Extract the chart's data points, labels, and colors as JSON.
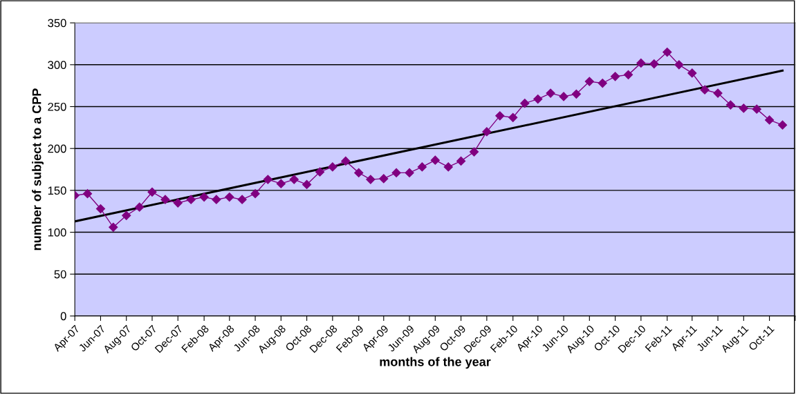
{
  "chart_data": {
    "type": "line",
    "xlabel": "months of the year",
    "ylabel": "number of subject to a CPP",
    "x": [
      "2007-04",
      "2007-05",
      "2007-06",
      "2007-07",
      "2007-08",
      "2007-09",
      "2007-10",
      "2007-11",
      "2007-12",
      "2008-01",
      "2008-02",
      "2008-03",
      "2008-04",
      "2008-05",
      "2008-06",
      "2008-07",
      "2008-08",
      "2008-09",
      "2008-10",
      "2008-11",
      "2008-12",
      "2009-01",
      "2009-02",
      "2009-03",
      "2009-04",
      "2009-05",
      "2009-06",
      "2009-07",
      "2009-08",
      "2009-09",
      "2009-10",
      "2009-11",
      "2009-12",
      "2010-01",
      "2010-02",
      "2010-03",
      "2010-04",
      "2010-05",
      "2010-06",
      "2010-07",
      "2010-08",
      "2010-09",
      "2010-10",
      "2010-11",
      "2010-12",
      "2011-01",
      "2011-02",
      "2011-03",
      "2011-04",
      "2011-05",
      "2011-06",
      "2011-07",
      "2011-08",
      "2011-09",
      "2011-10",
      "2011-11"
    ],
    "series": [
      {
        "color": "#800080",
        "marker": "diamond",
        "values": [
          144,
          146,
          128,
          106,
          120,
          130,
          148,
          139,
          135,
          139,
          142,
          139,
          142,
          139,
          146,
          163,
          158,
          163,
          157,
          172,
          178,
          185,
          171,
          163,
          164,
          171,
          171,
          178,
          186,
          178,
          185,
          196,
          220,
          239,
          237,
          254,
          259,
          266,
          262,
          265,
          280,
          278,
          286,
          288,
          302,
          301,
          315,
          300,
          290,
          270,
          266,
          252,
          248,
          247,
          234,
          228
        ]
      },
      {
        "type": "line",
        "color": "#000000",
        "marker": "none",
        "x": [
          "2007-04",
          "2011-11"
        ],
        "values": [
          113,
          293
        ]
      }
    ],
    "xlim": [
      "2007-04",
      "2011-12"
    ],
    "xticks": [
      {
        "value": "2007-04",
        "label": "Apr-07"
      },
      {
        "value": "2007-06",
        "label": "Jun-07"
      },
      {
        "value": "2007-08",
        "label": "Aug-07"
      },
      {
        "value": "2007-10",
        "label": "Oct-07"
      },
      {
        "value": "2007-12",
        "label": "Dec-07"
      },
      {
        "value": "2008-02",
        "label": "Feb-08"
      },
      {
        "value": "2008-04",
        "label": "Apr-08"
      },
      {
        "value": "2008-06",
        "label": "Jun-08"
      },
      {
        "value": "2008-08",
        "label": "Aug-08"
      },
      {
        "value": "2008-10",
        "label": "Oct-08"
      },
      {
        "value": "2008-12",
        "label": "Dec-08"
      },
      {
        "value": "2009-02",
        "label": "Feb-09"
      },
      {
        "value": "2009-04",
        "label": "Apr-09"
      },
      {
        "value": "2009-06",
        "label": "Jun-09"
      },
      {
        "value": "2009-08",
        "label": "Aug-09"
      },
      {
        "value": "2009-10",
        "label": "Oct-09"
      },
      {
        "value": "2009-12",
        "label": "Dec-09"
      },
      {
        "value": "2010-02",
        "label": "Feb-10"
      },
      {
        "value": "2010-04",
        "label": "Apr-10"
      },
      {
        "value": "2010-06",
        "label": "Jun-10"
      },
      {
        "value": "2010-08",
        "label": "Aug-10"
      },
      {
        "value": "2010-10",
        "label": "Oct-10"
      },
      {
        "value": "2010-12",
        "label": "Dec-10"
      },
      {
        "value": "2011-02",
        "label": "Feb-11"
      },
      {
        "value": "2011-04",
        "label": "Apr-11"
      },
      {
        "value": "2011-06",
        "label": "Jun-11"
      },
      {
        "value": "2011-08",
        "label": "Aug-11"
      },
      {
        "value": "2011-10",
        "label": "Oct-11"
      },
      {
        "value": "2011-12",
        "label": null
      }
    ],
    "ylim": [
      0,
      350
    ],
    "yticks": [
      0,
      50,
      100,
      150,
      200,
      250,
      300,
      350
    ],
    "grid": "y",
    "legend": false,
    "line_style": "solid"
  }
}
